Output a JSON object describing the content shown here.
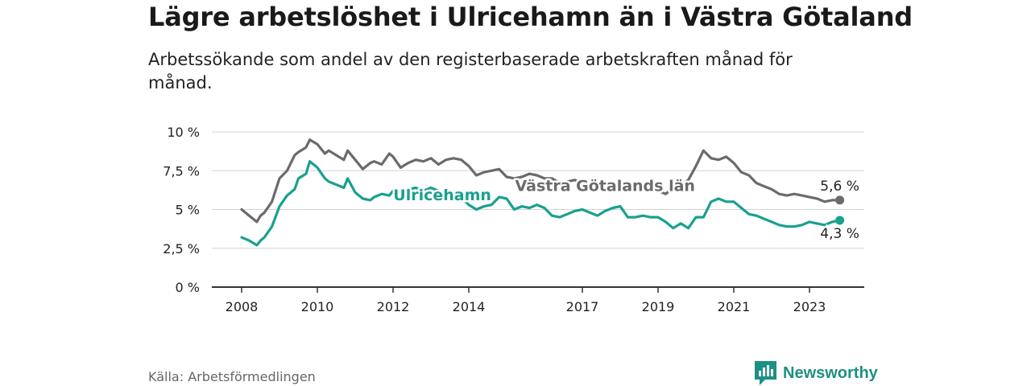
{
  "title": "Lägre arbetslöshet i Ulricehamn än i Västra Götaland",
  "subtitle": "Arbetssökande som andel av den registerbaserade arbetskraften månad för månad.",
  "source": "Källa: Arbetsförmedlingen",
  "brand": {
    "name": "Newsworthy",
    "icon": "newsworthy-logo-icon",
    "color": "#1f8f84"
  },
  "chart_data": {
    "type": "line",
    "title": "Lägre arbetslöshet i Ulricehamn än i Västra Götaland",
    "xlabel": "",
    "ylabel": "",
    "xlim": [
      2008,
      2024.5
    ],
    "ylim": [
      0,
      10
    ],
    "grid": true,
    "y_ticks": [
      {
        "value": 0,
        "label": "0 %"
      },
      {
        "value": 2.5,
        "label": "2,5 %"
      },
      {
        "value": 5,
        "label": "5 %"
      },
      {
        "value": 7.5,
        "label": "7,5 %"
      },
      {
        "value": 10,
        "label": "10 %"
      }
    ],
    "x_ticks": [
      {
        "value": 2008,
        "label": "2008"
      },
      {
        "value": 2010,
        "label": "2010"
      },
      {
        "value": 2012,
        "label": "2012"
      },
      {
        "value": 2014,
        "label": "2014"
      },
      {
        "value": 2017,
        "label": "2017"
      },
      {
        "value": 2019,
        "label": "2019"
      },
      {
        "value": 2021,
        "label": "2021"
      },
      {
        "value": 2023,
        "label": "2023"
      }
    ],
    "series": [
      {
        "name": "Västra Götalands län",
        "color": "#6b6b6e",
        "end_label": "5,6 %",
        "end_label_position": "above",
        "x": [
          2008.0,
          2008.2,
          2008.4,
          2008.5,
          2008.6,
          2008.8,
          2009.0,
          2009.2,
          2009.4,
          2009.5,
          2009.7,
          2009.8,
          2010.0,
          2010.2,
          2010.3,
          2010.5,
          2010.7,
          2010.8,
          2011.0,
          2011.2,
          2011.4,
          2011.5,
          2011.7,
          2011.9,
          2012.0,
          2012.2,
          2012.4,
          2012.6,
          2012.8,
          2013.0,
          2013.2,
          2013.4,
          2013.6,
          2013.8,
          2014.0,
          2014.2,
          2014.4,
          2014.6,
          2014.8,
          2015.0,
          2015.2,
          2015.4,
          2015.6,
          2015.8,
          2016.0,
          2016.2,
          2016.4,
          2016.6,
          2016.8,
          2017.0,
          2017.2,
          2017.4,
          2017.6,
          2017.8,
          2018.0,
          2018.2,
          2018.4,
          2018.6,
          2018.8,
          2019.0,
          2019.2,
          2019.4,
          2019.6,
          2019.8,
          2020.0,
          2020.2,
          2020.4,
          2020.6,
          2020.8,
          2021.0,
          2021.2,
          2021.4,
          2021.6,
          2021.8,
          2022.0,
          2022.2,
          2022.4,
          2022.6,
          2022.8,
          2023.0,
          2023.2,
          2023.4,
          2023.6,
          2023.8
        ],
        "values": [
          5.0,
          4.6,
          4.2,
          4.6,
          4.8,
          5.5,
          7.0,
          7.5,
          8.5,
          8.7,
          9.0,
          9.5,
          9.2,
          8.6,
          8.8,
          8.5,
          8.2,
          8.8,
          8.2,
          7.6,
          8.0,
          8.1,
          7.9,
          8.6,
          8.4,
          7.7,
          8.0,
          8.2,
          8.1,
          8.3,
          7.9,
          8.2,
          8.3,
          8.2,
          7.8,
          7.2,
          7.4,
          7.5,
          7.6,
          7.1,
          7.0,
          7.1,
          7.3,
          7.2,
          7.0,
          7.0,
          6.7,
          6.8,
          6.9,
          6.7,
          6.4,
          6.6,
          6.7,
          6.5,
          6.3,
          6.2,
          6.4,
          6.5,
          6.3,
          6.2,
          6.0,
          6.4,
          6.6,
          6.9,
          7.8,
          8.8,
          8.3,
          8.2,
          8.4,
          8.0,
          7.4,
          7.2,
          6.7,
          6.5,
          6.3,
          6.0,
          5.9,
          6.0,
          5.9,
          5.8,
          5.7,
          5.5,
          5.6,
          5.6
        ]
      },
      {
        "name": "Ulricehamn",
        "color": "#1aa08f",
        "end_label": "4,3 %",
        "end_label_position": "below",
        "x": [
          2008.0,
          2008.2,
          2008.4,
          2008.5,
          2008.6,
          2008.8,
          2009.0,
          2009.2,
          2009.4,
          2009.5,
          2009.7,
          2009.8,
          2010.0,
          2010.2,
          2010.3,
          2010.5,
          2010.7,
          2010.8,
          2011.0,
          2011.2,
          2011.4,
          2011.5,
          2011.7,
          2011.9,
          2012.0,
          2012.2,
          2012.4,
          2012.6,
          2012.8,
          2013.0,
          2013.2,
          2013.4,
          2013.6,
          2013.8,
          2014.0,
          2014.2,
          2014.4,
          2014.6,
          2014.8,
          2015.0,
          2015.2,
          2015.4,
          2015.6,
          2015.8,
          2016.0,
          2016.2,
          2016.4,
          2016.6,
          2016.8,
          2017.0,
          2017.2,
          2017.4,
          2017.6,
          2017.8,
          2018.0,
          2018.2,
          2018.4,
          2018.6,
          2018.8,
          2019.0,
          2019.2,
          2019.4,
          2019.6,
          2019.8,
          2020.0,
          2020.2,
          2020.4,
          2020.6,
          2020.8,
          2021.0,
          2021.2,
          2021.4,
          2021.6,
          2021.8,
          2022.0,
          2022.2,
          2022.4,
          2022.6,
          2022.8,
          2023.0,
          2023.2,
          2023.4,
          2023.6,
          2023.8
        ],
        "values": [
          3.2,
          3.0,
          2.7,
          3.0,
          3.2,
          3.9,
          5.2,
          5.9,
          6.3,
          7.0,
          7.3,
          8.1,
          7.7,
          7.0,
          6.8,
          6.6,
          6.4,
          7.0,
          6.1,
          5.7,
          5.6,
          5.8,
          6.0,
          5.9,
          6.2,
          6.1,
          6.3,
          6.4,
          6.2,
          6.4,
          6.2,
          6.0,
          5.8,
          5.8,
          5.3,
          5.0,
          5.2,
          5.3,
          5.8,
          5.7,
          5.0,
          5.2,
          5.1,
          5.3,
          5.1,
          4.6,
          4.5,
          4.7,
          4.9,
          5.0,
          4.8,
          4.6,
          4.9,
          5.1,
          5.2,
          4.5,
          4.5,
          4.6,
          4.5,
          4.5,
          4.2,
          3.8,
          4.1,
          3.8,
          4.5,
          4.5,
          5.5,
          5.7,
          5.5,
          5.5,
          5.1,
          4.7,
          4.6,
          4.4,
          4.2,
          4.0,
          3.9,
          3.9,
          4.0,
          4.2,
          4.1,
          4.0,
          4.2,
          4.3
        ]
      }
    ],
    "annotations": [
      {
        "text": "Ulricehamn",
        "series": "Ulricehamn",
        "x": 2013.3,
        "y": 5.6
      },
      {
        "text": "Västra Götalands län",
        "series": "Västra Götalands län",
        "x": 2017.6,
        "y": 6.2
      }
    ]
  }
}
